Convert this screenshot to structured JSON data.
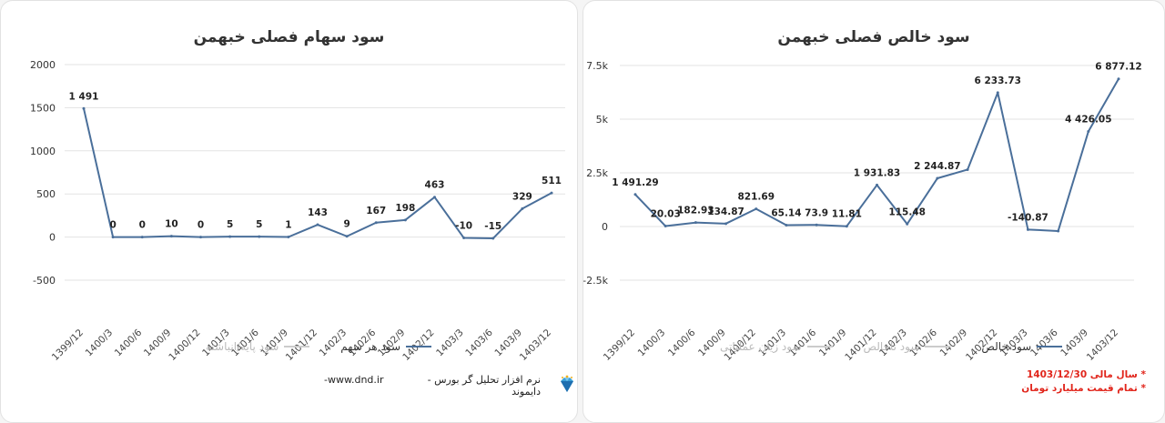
{
  "left": {
    "title": "سود سهام فصلی خبهمن",
    "legend": [
      {
        "label": "سود هر سهم",
        "color": "#4a6f9a",
        "active": true
      },
      {
        "label": "سود پایه/انباشته",
        "color": "#cccccc",
        "active": false
      }
    ],
    "chart_data": {
      "type": "line",
      "title": "سود سهام فصلی خبهمن",
      "categories": [
        "1399/12",
        "1400/3",
        "1400/6",
        "1400/9",
        "1400/12",
        "1401/3",
        "1401/6",
        "1401/9",
        "1401/12",
        "1402/3",
        "1402/6",
        "1402/9",
        "1402/12",
        "1403/3",
        "1403/6",
        "1403/9",
        "1403/12"
      ],
      "series": [
        {
          "name": "سود هر سهم",
          "values": [
            1491,
            0,
            0,
            10,
            0,
            5,
            5,
            1,
            143,
            9,
            167,
            198,
            463,
            -10,
            -15,
            329,
            511
          ],
          "labels": [
            "1 491",
            "0",
            "0",
            "10",
            "0",
            "5",
            "5",
            "1",
            "143",
            "9",
            "167",
            "198",
            "463",
            "-10",
            "-15",
            "329",
            "511"
          ]
        }
      ],
      "yticks": [
        -500,
        0,
        500,
        1000,
        1500,
        2000
      ],
      "ytick_labels": [
        "-500",
        "0",
        "500",
        "1000",
        "1500",
        "2000"
      ],
      "ylim": [
        -500,
        2000
      ],
      "grid": true,
      "color": "#4a6f9a"
    }
  },
  "right": {
    "title": "سود خالص فصلی خبهمن",
    "legend": [
      {
        "label": "سود خالص",
        "color": "#4a6f9a",
        "active": true
      },
      {
        "label": "سود ناخالص",
        "color": "#cccccc",
        "active": false
      },
      {
        "label": "سود زیان عملیاتی",
        "color": "#cccccc",
        "active": false
      }
    ],
    "chart_data": {
      "type": "line",
      "title": "سود خالص فصلی خبهمن",
      "categories": [
        "1399/12",
        "1400/3",
        "1400/6",
        "1400/9",
        "1400/12",
        "1401/3",
        "1401/6",
        "1401/9",
        "1401/12",
        "1402/3",
        "1402/6",
        "1402/9",
        "1402/12",
        "1403/3",
        "1403/6",
        "1403/9",
        "1403/12"
      ],
      "series": [
        {
          "name": "سود خالص",
          "values": [
            1491.29,
            20.03,
            182.93,
            134.87,
            821.69,
            65.14,
            73.9,
            11.81,
            1931.83,
            115.48,
            2244.87,
            2650,
            6233.73,
            -140.87,
            -210,
            4426.05,
            6877.12
          ],
          "labels": [
            "1 491.29",
            "20.03",
            "182.93",
            "134.87",
            "821.69",
            "65.14",
            "73.9",
            "11.81",
            "1 931.83",
            "115.48",
            "2 244.87",
            "",
            "6 233.73",
            "-140.87",
            "",
            "4 426.05",
            "6 877.12"
          ]
        }
      ],
      "yticks": [
        -2500,
        0,
        2500,
        5000,
        7500
      ],
      "ytick_labels": [
        "-2.5k",
        "0",
        "2.5k",
        "5k",
        "7.5k"
      ],
      "ylim": [
        -2500,
        7500
      ],
      "grid": true,
      "color": "#4a6f9a"
    }
  },
  "footer": {
    "software": "نرم افزار تحلیل گر بورس - دایموند",
    "site": "www.dnd.ir-",
    "notes": [
      "* سال مالی 1403/12/30",
      "* تمام قیمت میلیارد تومان"
    ]
  }
}
